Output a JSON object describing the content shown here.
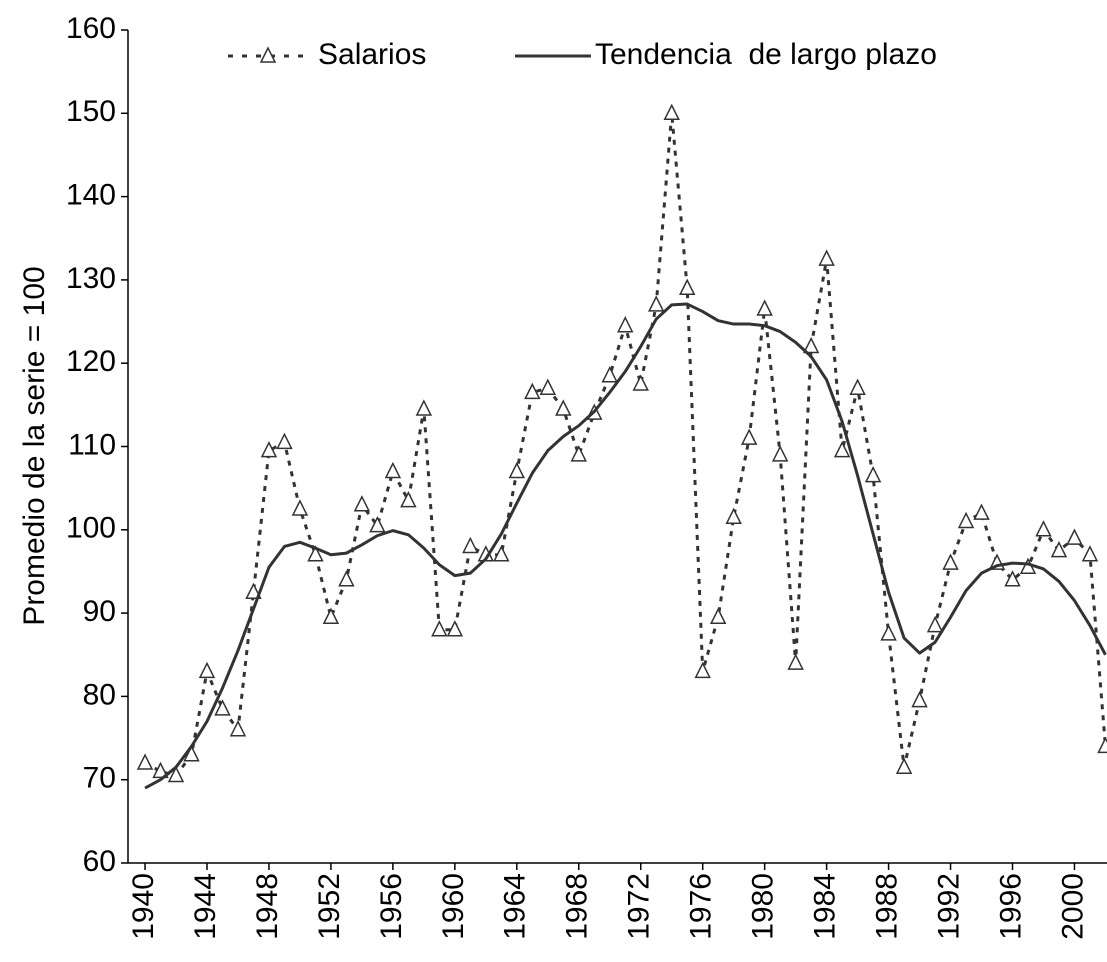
{
  "chart_data": {
    "type": "line",
    "ylabel": "Promedio de la serie = 100",
    "x": [
      1940,
      1941,
      1942,
      1943,
      1944,
      1945,
      1946,
      1947,
      1948,
      1949,
      1950,
      1951,
      1952,
      1953,
      1954,
      1955,
      1956,
      1957,
      1958,
      1959,
      1960,
      1961,
      1962,
      1963,
      1964,
      1965,
      1966,
      1967,
      1968,
      1969,
      1970,
      1971,
      1972,
      1973,
      1974,
      1975,
      1976,
      1977,
      1978,
      1979,
      1980,
      1981,
      1982,
      1983,
      1984,
      1985,
      1986,
      1987,
      1988,
      1989,
      1990,
      1991,
      1992,
      1993,
      1994,
      1995,
      1996,
      1997,
      1998,
      1999,
      2000,
      2001,
      2002
    ],
    "series": [
      {
        "name": "Salarios",
        "color": "#333333",
        "dashed": true,
        "marker": "triangle",
        "values": [
          72,
          71,
          70.5,
          73,
          83,
          78.5,
          76,
          92.5,
          109.5,
          110.5,
          102.5,
          97,
          89.5,
          94,
          103,
          100.5,
          107,
          103.5,
          114.5,
          88,
          88,
          98,
          97,
          97,
          107,
          116.5,
          117,
          114.5,
          109,
          114,
          118.5,
          124.5,
          117.5,
          127,
          150,
          129,
          83,
          89.5,
          101.5,
          111,
          126.5,
          109,
          84,
          122,
          132.5,
          109.5,
          117,
          106.5,
          87.5,
          71.5,
          79.5,
          88.5,
          96,
          101,
          102,
          96,
          94,
          95.5,
          100,
          97.5,
          99,
          97,
          74
        ]
      },
      {
        "name": "Tendencia  de largo plazo",
        "color": "#333333",
        "dashed": false,
        "values": [
          69,
          70,
          71.5,
          74,
          77,
          81,
          85.5,
          90.5,
          95.5,
          98,
          98.5,
          97.8,
          97,
          97.2,
          98.2,
          99.3,
          99.9,
          99.4,
          97.8,
          95.8,
          94.5,
          94.8,
          96.5,
          99.5,
          103.2,
          106.8,
          109.5,
          111.2,
          112.5,
          114.2,
          116.5,
          119,
          122,
          125.3,
          127,
          127.1,
          126.2,
          125.1,
          124.7,
          124.7,
          124.5,
          123.8,
          122.5,
          120.8,
          118,
          113,
          106.5,
          99.5,
          92.5,
          87,
          85.2,
          86.5,
          89.5,
          92.7,
          94.8,
          95.7,
          96,
          95.9,
          95.3,
          93.8,
          91.5,
          88.5,
          85
        ]
      }
    ],
    "xlim": [
      1938.9,
      2002.1
    ],
    "xticks": [
      1940,
      1944,
      1948,
      1952,
      1956,
      1960,
      1964,
      1968,
      1972,
      1976,
      1980,
      1984,
      1988,
      1992,
      1996,
      2000
    ],
    "ylim": [
      60,
      160
    ],
    "yticks": [
      60,
      70,
      80,
      90,
      100,
      110,
      120,
      130,
      140,
      150,
      160
    ],
    "grid": false,
    "legend": "top"
  }
}
